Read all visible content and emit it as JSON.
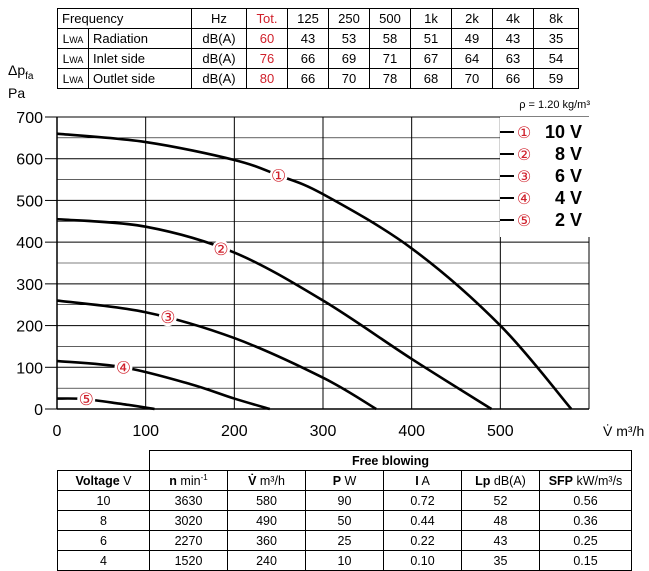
{
  "sound_table": {
    "header": [
      "Frequency",
      "Hz",
      "Tot.",
      "125",
      "250",
      "500",
      "1k",
      "2k",
      "4k",
      "8k"
    ],
    "rows": [
      {
        "sym": "L",
        "sub": "WA",
        "label": "Radiation",
        "unit": "dB(A)",
        "tot": "60",
        "values": [
          "43",
          "53",
          "58",
          "51",
          "49",
          "43",
          "35"
        ]
      },
      {
        "sym": "L",
        "sub": "WA",
        "label": "Inlet side",
        "unit": "dB(A)",
        "tot": "76",
        "values": [
          "66",
          "69",
          "71",
          "67",
          "64",
          "63",
          "54"
        ]
      },
      {
        "sym": "L",
        "sub": "WA",
        "label": "Outlet side",
        "unit": "dB(A)",
        "tot": "80",
        "values": [
          "66",
          "70",
          "78",
          "68",
          "70",
          "66",
          "59"
        ]
      }
    ],
    "accent_color": "#d0202b"
  },
  "chart_data": {
    "type": "line",
    "ylabel_symbol": "Δp",
    "ylabel_sub": "fa",
    "ylabel_unit": "Pa",
    "xlabel": "V̇ m³/h",
    "density_note": "ρ = 1.20 kg/m³",
    "xlim": [
      0,
      600
    ],
    "ylim": [
      0,
      700
    ],
    "xticks": [
      0,
      100,
      200,
      300,
      400,
      500
    ],
    "yticks": [
      0,
      100,
      200,
      300,
      400,
      500,
      600,
      700
    ],
    "grid": true,
    "legend_position": "top-right",
    "series": [
      {
        "marker": "①",
        "name": "10 V",
        "points": [
          [
            0,
            660
          ],
          [
            100,
            640
          ],
          [
            200,
            597
          ],
          [
            250,
            560
          ],
          [
            300,
            515
          ],
          [
            400,
            385
          ],
          [
            500,
            200
          ],
          [
            580,
            0
          ]
        ],
        "marker_at": [
          250,
          560
        ]
      },
      {
        "marker": "②",
        "name": "8 V",
        "points": [
          [
            0,
            455
          ],
          [
            100,
            437
          ],
          [
            200,
            375
          ],
          [
            300,
            260
          ],
          [
            400,
            120
          ],
          [
            490,
            0
          ]
        ],
        "marker_at": [
          185,
          383
        ]
      },
      {
        "marker": "③",
        "name": "6 V",
        "points": [
          [
            0,
            260
          ],
          [
            100,
            232
          ],
          [
            200,
            170
          ],
          [
            300,
            75
          ],
          [
            360,
            0
          ]
        ],
        "marker_at": [
          125,
          220
        ]
      },
      {
        "marker": "④",
        "name": "4 V",
        "points": [
          [
            0,
            115
          ],
          [
            75,
            100
          ],
          [
            150,
            60
          ],
          [
            200,
            25
          ],
          [
            240,
            0
          ]
        ],
        "marker_at": [
          75,
          100
        ]
      },
      {
        "marker": "⑤",
        "name": "2 V",
        "points": [
          [
            0,
            25
          ],
          [
            30,
            24
          ],
          [
            70,
            13
          ],
          [
            110,
            0
          ]
        ],
        "marker_at": [
          33,
          24
        ]
      }
    ],
    "line_color": "#000000",
    "marker_color": "#d0202b"
  },
  "perf_table": {
    "group_header": "Free blowing",
    "columns": [
      {
        "bold": "Voltage",
        "unit": " V"
      },
      {
        "bold": "n",
        "unit": " min",
        "sup": "-1"
      },
      {
        "bold": "V̇",
        "unit": " m³/h"
      },
      {
        "bold": "P",
        "unit": " W"
      },
      {
        "bold": "I",
        "unit": " A"
      },
      {
        "bold": "Lp",
        "unit": " dB(A)"
      },
      {
        "bold": "SFP",
        "unit": " kW/m³/s"
      }
    ],
    "rows": [
      [
        "10",
        "3630",
        "580",
        "90",
        "0.72",
        "52",
        "0.56"
      ],
      [
        "8",
        "3020",
        "490",
        "50",
        "0.44",
        "48",
        "0.36"
      ],
      [
        "6",
        "2270",
        "360",
        "25",
        "0.22",
        "43",
        "0.25"
      ],
      [
        "4",
        "1520",
        "240",
        "10",
        "0.10",
        "35",
        "0.15"
      ]
    ]
  }
}
